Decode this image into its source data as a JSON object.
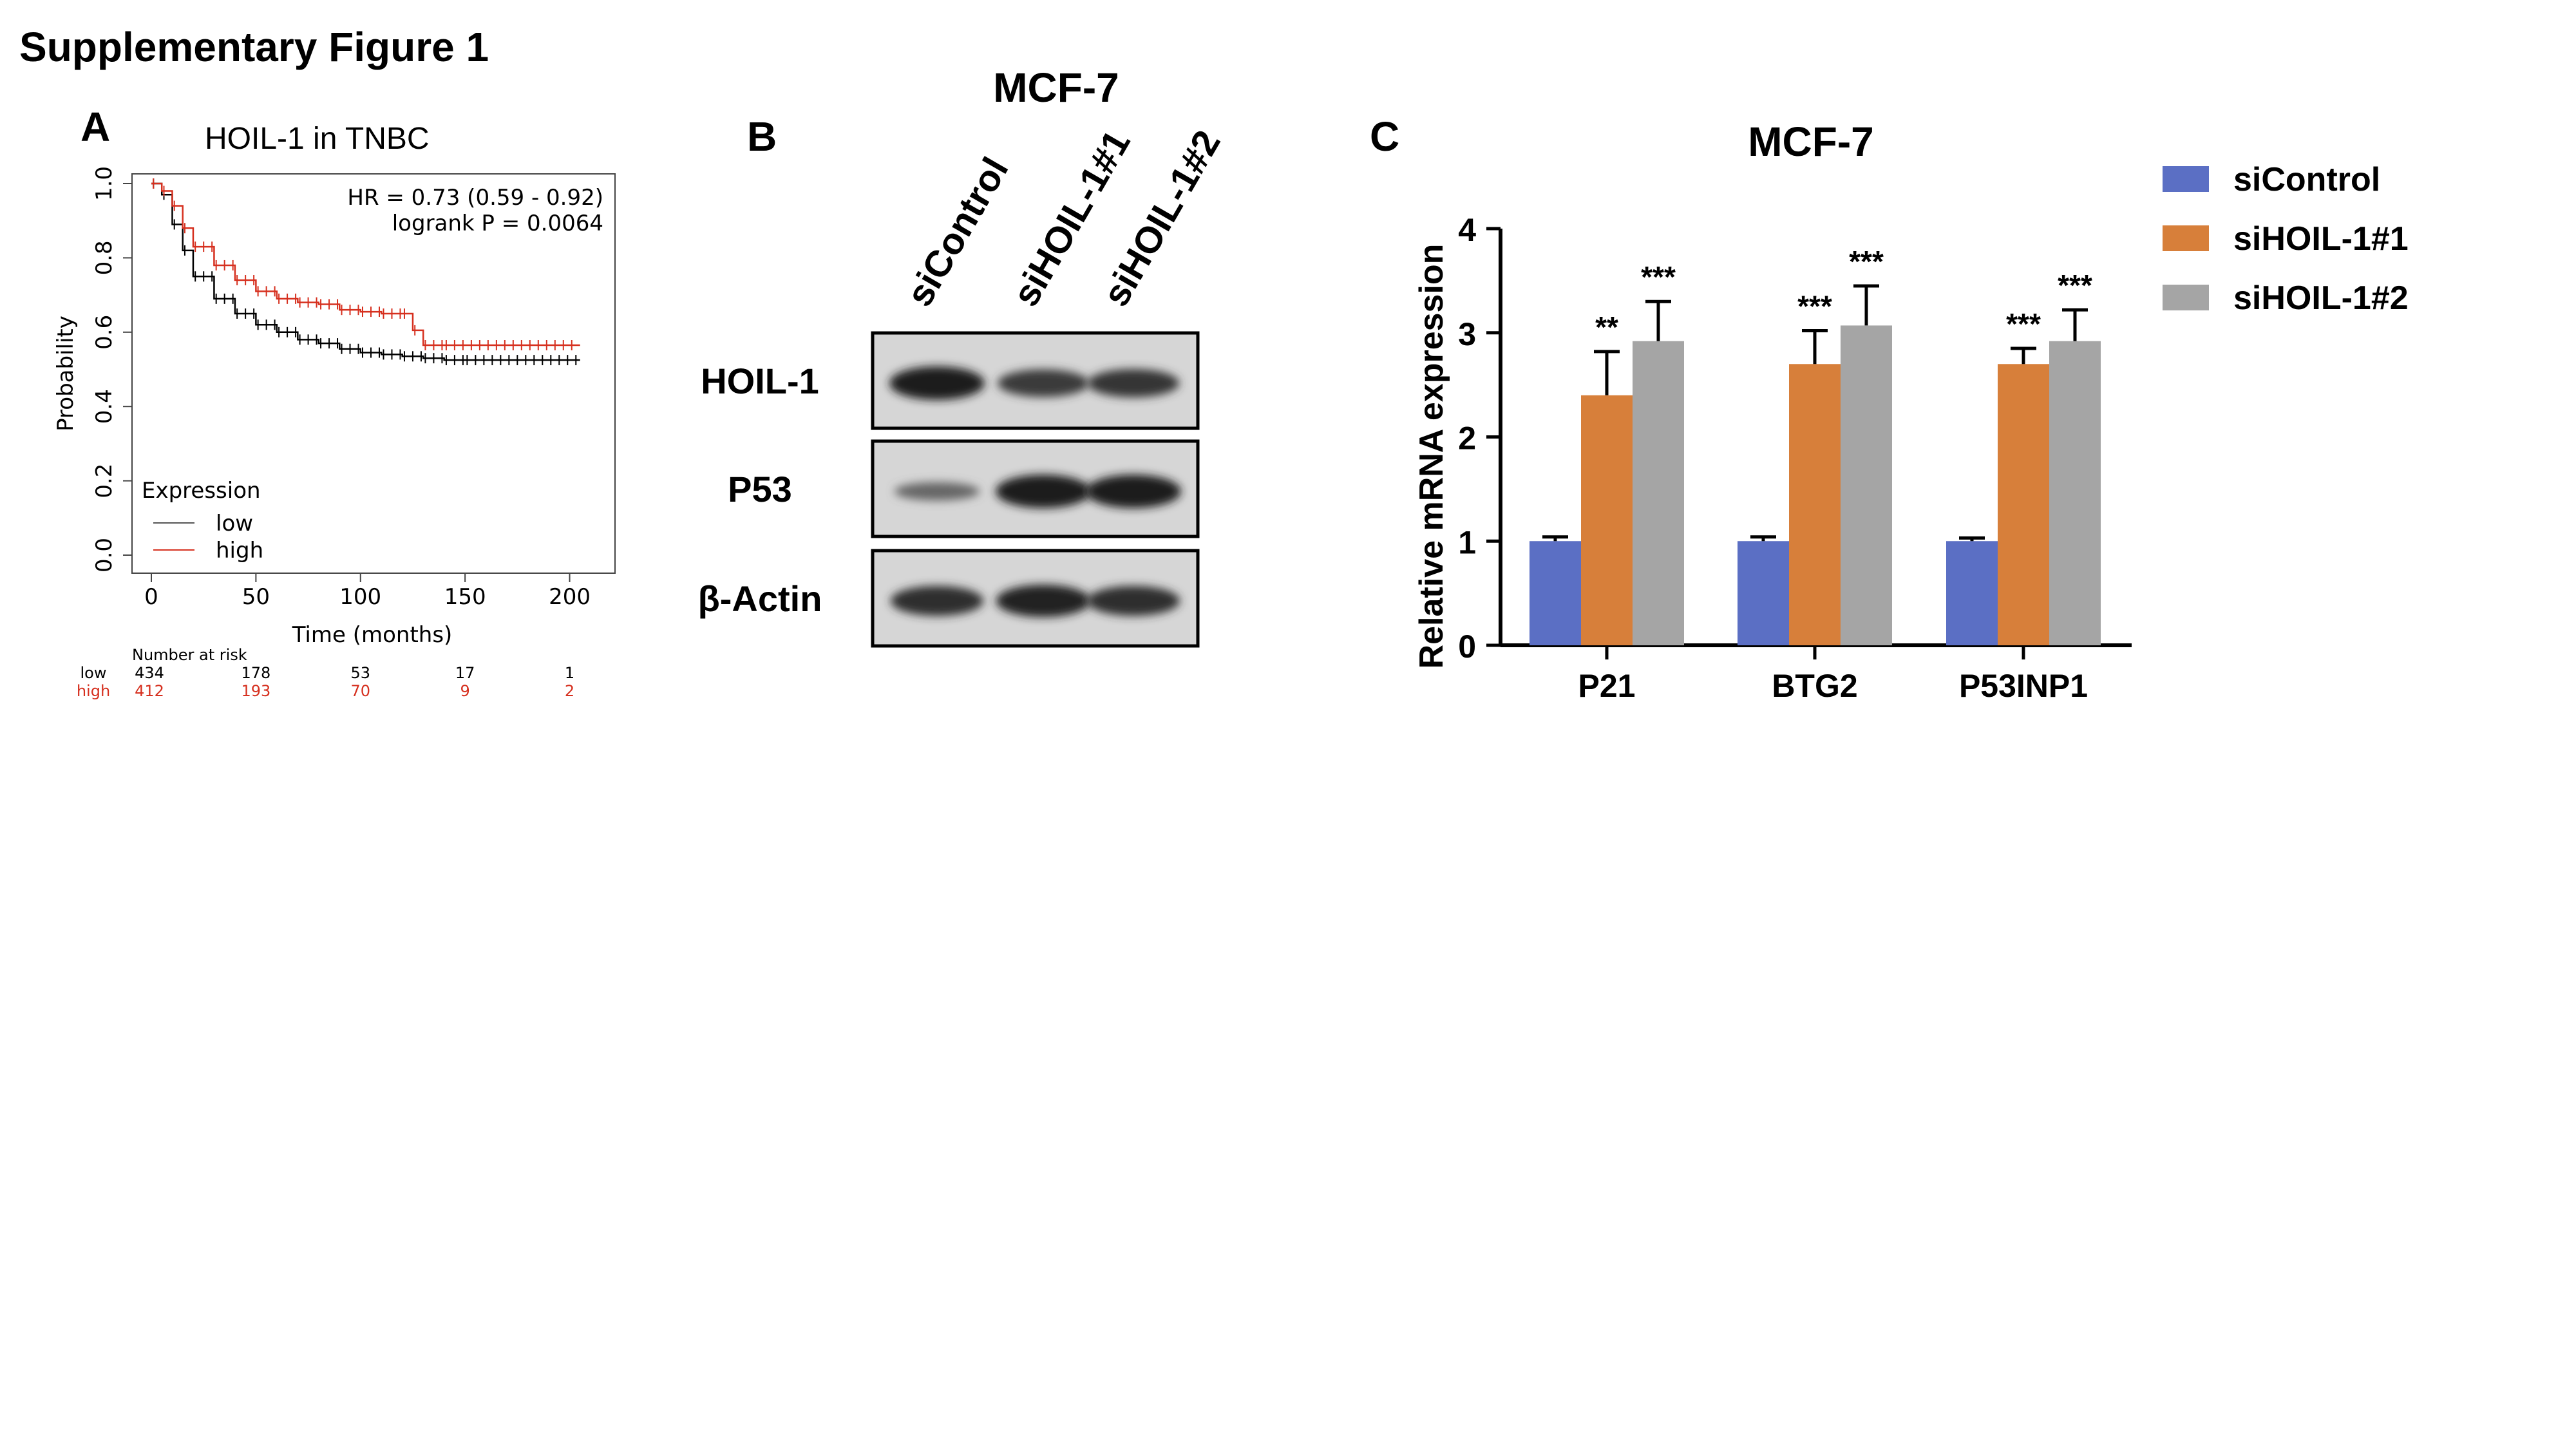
{
  "figure_title": "Supplementary Figure 1",
  "panels": {
    "A": {
      "letter": "A",
      "title": "HOIL-1 in TNBC",
      "hr_text": "HR = 0.73 (0.59 - 0.92)",
      "logrank_text": "logrank P = 0.0064",
      "ylabel": "Probability",
      "xlabel": "Time (months)",
      "legend_title": "Expression",
      "risk_title": "Number at risk",
      "colors": {
        "low": "#000000",
        "high": "#d6301f"
      }
    },
    "B": {
      "letter": "B",
      "title": "MCF-7",
      "lanes": [
        "siControl",
        "siHOIL-1#1",
        "siHOIL-1#2"
      ],
      "blots": [
        {
          "label": "HOIL-1",
          "intensities": [
            1.0,
            0.75,
            0.78
          ]
        },
        {
          "label": "P53",
          "intensities": [
            0.35,
            1.0,
            1.0
          ]
        },
        {
          "label": "β-Actin",
          "intensities": [
            0.85,
            0.95,
            0.85
          ]
        }
      ]
    },
    "C": {
      "letter": "C",
      "title": "MCF-7"
    }
  },
  "chart_data": [
    {
      "type": "line",
      "title": "HOIL-1 in TNBC",
      "xlabel": "Time (months)",
      "ylabel": "Probability",
      "xlim": [
        0,
        210
      ],
      "ylim": [
        0,
        1
      ],
      "x_ticks": [
        0,
        50,
        100,
        150,
        200
      ],
      "y_ticks": [
        0.0,
        0.2,
        0.4,
        0.6,
        0.8,
        1.0
      ],
      "x_tick_labels": [
        "0",
        "50",
        "100",
        "150",
        "200"
      ],
      "y_tick_labels": [
        "0.0",
        "0.2",
        "0.4",
        "0.6",
        "0.8",
        "1.0"
      ],
      "legend": {
        "title": "Expression",
        "position": "bottom-left"
      },
      "series": [
        {
          "name": "low",
          "color": "#000000",
          "x": [
            0,
            5,
            10,
            15,
            20,
            30,
            40,
            50,
            60,
            70,
            80,
            90,
            100,
            110,
            120,
            130,
            140,
            150,
            170,
            190,
            205
          ],
          "y": [
            1.0,
            0.97,
            0.89,
            0.82,
            0.75,
            0.69,
            0.65,
            0.62,
            0.6,
            0.58,
            0.57,
            0.555,
            0.545,
            0.54,
            0.535,
            0.53,
            0.525,
            0.525,
            0.525,
            0.525,
            0.525
          ]
        },
        {
          "name": "high",
          "color": "#d6301f",
          "x": [
            0,
            5,
            10,
            15,
            20,
            30,
            40,
            50,
            60,
            70,
            80,
            90,
            100,
            110,
            120,
            125,
            130,
            140,
            160,
            180,
            205
          ],
          "y": [
            1.0,
            0.98,
            0.94,
            0.88,
            0.83,
            0.78,
            0.74,
            0.71,
            0.69,
            0.68,
            0.675,
            0.66,
            0.655,
            0.65,
            0.65,
            0.605,
            0.565,
            0.565,
            0.565,
            0.565,
            0.565
          ]
        }
      ],
      "number_at_risk": {
        "times": [
          0,
          50,
          100,
          150,
          200
        ],
        "rows": [
          {
            "name": "low",
            "values": [
              "434",
              "178",
              "53",
              "17",
              "1"
            ]
          },
          {
            "name": "high",
            "values": [
              "412",
              "193",
              "70",
              "9",
              "2"
            ]
          }
        ]
      },
      "annotations": [
        "HR = 0.73 (0.59 - 0.92)",
        "logrank P = 0.0064"
      ]
    },
    {
      "type": "bar",
      "title": "MCF-7",
      "xlabel": "",
      "ylabel": "Relative  mRNA  expression",
      "ylim": [
        0,
        4
      ],
      "y_ticks": [
        0,
        1,
        2,
        3,
        4
      ],
      "y_tick_labels": [
        "0",
        "1",
        "2",
        "3",
        "4"
      ],
      "categories": [
        "P21",
        "BTG2",
        "P53INP1"
      ],
      "legend": {
        "position": "top-right"
      },
      "series": [
        {
          "name": "siControl",
          "color": "#5b6fc4",
          "values": [
            1.0,
            1.0,
            1.0
          ],
          "errors": [
            0.04,
            0.04,
            0.03
          ],
          "significance": [
            "",
            "",
            ""
          ]
        },
        {
          "name": "siHOIL-1#1",
          "color": "#d77f3a",
          "values": [
            2.4,
            2.7,
            2.7
          ],
          "errors": [
            0.42,
            0.32,
            0.15
          ],
          "significance": [
            "**",
            "***",
            "***"
          ]
        },
        {
          "name": "siHOIL-1#2",
          "color": "#a5a5a5",
          "values": [
            2.92,
            3.07,
            2.92
          ],
          "errors": [
            0.38,
            0.38,
            0.3
          ],
          "significance": [
            "***",
            "***",
            "***"
          ]
        }
      ]
    }
  ]
}
